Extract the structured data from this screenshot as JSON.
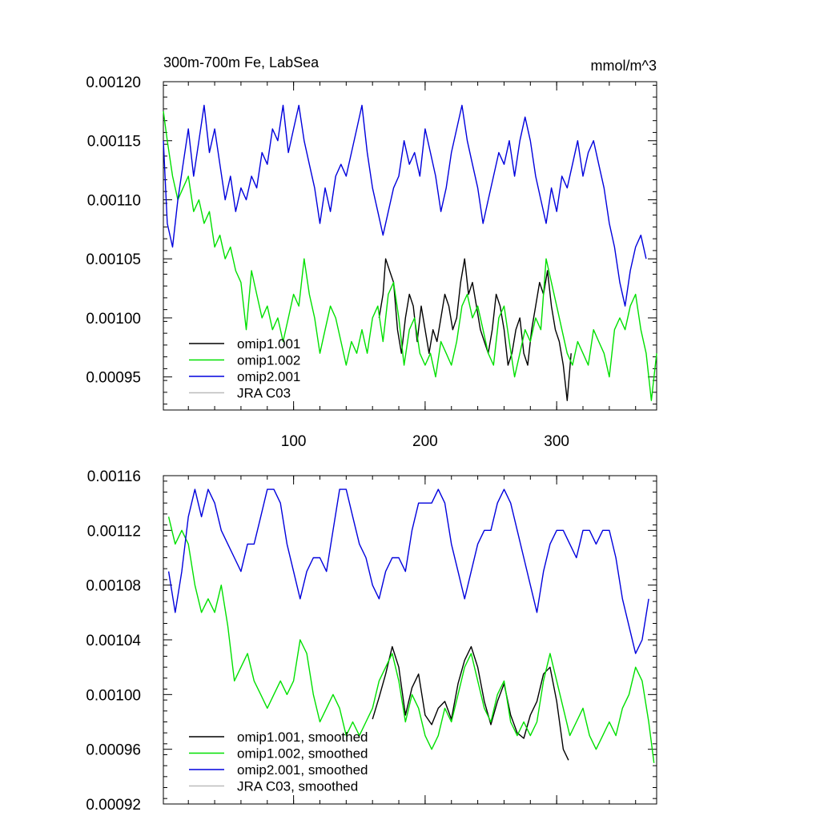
{
  "chart_data": [
    {
      "type": "line",
      "title": "300m-700m Fe, LabSea",
      "units": "mmol/m^3",
      "xlim": [
        1,
        376
      ],
      "ylim": [
        0.000922,
        0.0012
      ],
      "xticks": [
        100,
        200,
        300
      ],
      "xtick_labels": [
        "100",
        "200",
        "300"
      ],
      "yticks": [
        0.00095,
        0.001,
        0.00105,
        0.0011,
        0.00115,
        0.0012
      ],
      "ytick_labels": [
        "0.00095",
        "0.00100",
        "0.00105",
        "0.00110",
        "0.00115",
        "0.00120"
      ],
      "legend_position": "bottom-left",
      "series": [
        {
          "name": "omip1.001",
          "color": "#000000",
          "x": [
            165,
            168,
            170,
            173,
            176,
            179,
            182,
            185,
            188,
            191,
            194,
            197,
            200,
            203,
            206,
            209,
            212,
            215,
            218,
            221,
            224,
            227,
            230,
            233,
            236,
            239,
            242,
            245,
            248,
            251,
            254,
            257,
            260,
            263,
            266,
            269,
            272,
            275,
            278,
            281,
            284,
            287,
            290,
            293,
            296,
            299,
            302,
            305,
            308,
            311
          ],
          "y": [
            0.001,
            0.00102,
            0.00105,
            0.00104,
            0.00103,
            0.00099,
            0.00097,
            0.001,
            0.00102,
            0.00101,
            0.00098,
            0.00101,
            0.00099,
            0.00097,
            0.00099,
            0.00098,
            0.001,
            0.00102,
            0.00101,
            0.00099,
            0.001,
            0.00103,
            0.00105,
            0.00102,
            0.00103,
            0.00101,
            0.00099,
            0.00098,
            0.00097,
            0.00099,
            0.00102,
            0.00101,
            0.00099,
            0.00096,
            0.00097,
            0.00099,
            0.001,
            0.00097,
            0.00096,
            0.00099,
            0.00101,
            0.00103,
            0.00102,
            0.00104,
            0.00101,
            0.00099,
            0.00098,
            0.00096,
            0.00093,
            0.00097
          ]
        },
        {
          "name": "omip1.002",
          "color": "#00e000",
          "x": [
            1,
            4,
            8,
            12,
            16,
            20,
            24,
            28,
            32,
            36,
            40,
            44,
            48,
            52,
            56,
            60,
            64,
            68,
            72,
            76,
            80,
            84,
            88,
            92,
            96,
            100,
            104,
            108,
            112,
            116,
            120,
            124,
            128,
            132,
            136,
            140,
            144,
            148,
            152,
            156,
            160,
            164,
            168,
            172,
            176,
            180,
            184,
            188,
            192,
            196,
            200,
            204,
            208,
            212,
            216,
            220,
            224,
            228,
            232,
            236,
            240,
            244,
            248,
            252,
            256,
            260,
            264,
            268,
            272,
            276,
            280,
            284,
            288,
            292,
            296,
            300,
            304,
            308,
            312,
            316,
            320,
            324,
            328,
            332,
            336,
            340,
            344,
            348,
            352,
            356,
            360,
            364,
            368,
            372,
            376
          ],
          "y": [
            0.001175,
            0.00115,
            0.00112,
            0.0011,
            0.00111,
            0.00112,
            0.00109,
            0.0011,
            0.00108,
            0.00109,
            0.00106,
            0.00107,
            0.00105,
            0.00106,
            0.00104,
            0.00103,
            0.00099,
            0.00104,
            0.00102,
            0.001,
            0.00101,
            0.00099,
            0.001,
            0.00098,
            0.001,
            0.00102,
            0.00101,
            0.00105,
            0.00102,
            0.001,
            0.00097,
            0.00099,
            0.00101,
            0.001,
            0.00098,
            0.00096,
            0.00098,
            0.00097,
            0.00099,
            0.00097,
            0.001,
            0.00101,
            0.00098,
            0.00102,
            0.00103,
            0.001,
            0.00096,
            0.00099,
            0.001,
            0.00097,
            0.00096,
            0.00097,
            0.00095,
            0.00098,
            0.00097,
            0.00096,
            0.00098,
            0.00101,
            0.00102,
            0.001,
            0.00101,
            0.00099,
            0.00097,
            0.00096,
            0.001,
            0.00101,
            0.00098,
            0.00095,
            0.00097,
            0.00099,
            0.00098,
            0.001,
            0.00099,
            0.00105,
            0.00103,
            0.00101,
            0.00099,
            0.00097,
            0.00096,
            0.00098,
            0.00097,
            0.00096,
            0.00099,
            0.00098,
            0.00097,
            0.00095,
            0.00099,
            0.001,
            0.00099,
            0.00101,
            0.00102,
            0.00099,
            0.00097,
            0.00093,
            0.00097
          ]
        },
        {
          "name": "omip2.001",
          "color": "#0000dd",
          "x": [
            1,
            4,
            8,
            12,
            16,
            20,
            24,
            28,
            32,
            36,
            40,
            44,
            48,
            52,
            56,
            60,
            64,
            68,
            72,
            76,
            80,
            84,
            88,
            92,
            96,
            100,
            104,
            108,
            112,
            116,
            120,
            124,
            128,
            132,
            136,
            140,
            144,
            148,
            152,
            156,
            160,
            164,
            168,
            172,
            176,
            180,
            184,
            188,
            192,
            196,
            200,
            204,
            208,
            212,
            216,
            220,
            224,
            228,
            232,
            236,
            240,
            244,
            248,
            252,
            256,
            260,
            264,
            268,
            272,
            276,
            280,
            284,
            288,
            292,
            296,
            300,
            304,
            308,
            312,
            316,
            320,
            324,
            328,
            332,
            336,
            340,
            344,
            348,
            352,
            356,
            360,
            364,
            368
          ],
          "y": [
            0.00115,
            0.00108,
            0.00106,
            0.0011,
            0.00113,
            0.00116,
            0.00112,
            0.00115,
            0.00118,
            0.00114,
            0.00116,
            0.00113,
            0.0011,
            0.00112,
            0.00109,
            0.00111,
            0.0011,
            0.00112,
            0.00111,
            0.00114,
            0.00113,
            0.00116,
            0.00115,
            0.00118,
            0.00114,
            0.00116,
            0.00118,
            0.00115,
            0.00113,
            0.00111,
            0.00108,
            0.00111,
            0.00109,
            0.00112,
            0.00113,
            0.00112,
            0.00114,
            0.00116,
            0.00118,
            0.00114,
            0.00111,
            0.00109,
            0.00107,
            0.00109,
            0.00111,
            0.00112,
            0.00115,
            0.00113,
            0.00114,
            0.00112,
            0.00116,
            0.00114,
            0.00112,
            0.00109,
            0.00111,
            0.00114,
            0.00116,
            0.00118,
            0.00115,
            0.00113,
            0.00111,
            0.00108,
            0.0011,
            0.00112,
            0.00114,
            0.00113,
            0.00115,
            0.00112,
            0.00115,
            0.00117,
            0.00115,
            0.00112,
            0.0011,
            0.00108,
            0.00111,
            0.00109,
            0.00112,
            0.00111,
            0.00113,
            0.00115,
            0.00112,
            0.00114,
            0.00115,
            0.00113,
            0.00111,
            0.00108,
            0.00106,
            0.00103,
            0.00101,
            0.00104,
            0.00106,
            0.00107,
            0.00105
          ]
        },
        {
          "name": "JRA C03",
          "color": "#bbbbbb",
          "x": [],
          "y": []
        }
      ]
    },
    {
      "type": "line",
      "title": "",
      "units": "",
      "xlim": [
        1,
        376
      ],
      "ylim": [
        0.00092,
        0.00116
      ],
      "xticks": [
        100,
        200,
        300
      ],
      "xtick_labels": [
        "",
        "",
        ""
      ],
      "yticks": [
        0.00092,
        0.00096,
        0.001,
        0.00104,
        0.00108,
        0.00112,
        0.00116
      ],
      "ytick_labels": [
        "0.00092",
        "0.00096",
        "0.00100",
        "0.00104",
        "0.00108",
        "0.00112",
        "0.00116"
      ],
      "legend_position": "bottom-left",
      "series": [
        {
          "name": "omip1.001, smoothed",
          "color": "#000000",
          "x": [
            160,
            165,
            170,
            175,
            180,
            185,
            190,
            195,
            200,
            205,
            210,
            215,
            220,
            225,
            230,
            235,
            240,
            245,
            250,
            255,
            260,
            265,
            270,
            275,
            280,
            285,
            290,
            295,
            300,
            305,
            309
          ],
          "y": [
            0.000982,
            0.000998,
            0.001015,
            0.001035,
            0.00102,
            0.000985,
            0.001005,
            0.001015,
            0.000985,
            0.000978,
            0.00099,
            0.000995,
            0.000982,
            0.001008,
            0.001025,
            0.001035,
            0.00102,
            0.000995,
            0.000978,
            0.000995,
            0.001008,
            0.000985,
            0.000972,
            0.000968,
            0.000985,
            0.000995,
            0.001015,
            0.00102,
            0.000995,
            0.00096,
            0.000952
          ]
        },
        {
          "name": "omip1.002, smoothed",
          "color": "#00e000",
          "x": [
            5,
            10,
            15,
            20,
            25,
            30,
            35,
            40,
            45,
            50,
            55,
            60,
            65,
            70,
            75,
            80,
            85,
            90,
            95,
            100,
            105,
            110,
            115,
            120,
            125,
            130,
            135,
            140,
            145,
            150,
            155,
            160,
            165,
            170,
            175,
            180,
            185,
            190,
            195,
            200,
            205,
            210,
            215,
            220,
            225,
            230,
            235,
            240,
            245,
            250,
            255,
            260,
            265,
            270,
            275,
            280,
            285,
            290,
            295,
            300,
            305,
            310,
            315,
            320,
            325,
            330,
            335,
            340,
            345,
            350,
            355,
            360,
            365,
            370,
            374
          ],
          "y": [
            0.00113,
            0.00111,
            0.00112,
            0.00111,
            0.00108,
            0.00106,
            0.00107,
            0.00106,
            0.00108,
            0.00105,
            0.00101,
            0.00102,
            0.00103,
            0.00101,
            0.001,
            0.00099,
            0.001,
            0.00101,
            0.001,
            0.00101,
            0.00104,
            0.00103,
            0.001,
            0.00098,
            0.00099,
            0.001,
            0.00099,
            0.00097,
            0.00098,
            0.00097,
            0.00098,
            0.00099,
            0.00101,
            0.00102,
            0.00103,
            0.00101,
            0.00098,
            0.001,
            0.00099,
            0.00097,
            0.00096,
            0.00097,
            0.00099,
            0.00098,
            0.001,
            0.00102,
            0.00103,
            0.00101,
            0.00099,
            0.00098,
            0.001,
            0.00101,
            0.00098,
            0.00097,
            0.00098,
            0.00097,
            0.00098,
            0.00101,
            0.00103,
            0.00101,
            0.00099,
            0.00097,
            0.00098,
            0.00099,
            0.00097,
            0.00096,
            0.00097,
            0.00098,
            0.00097,
            0.00099,
            0.001,
            0.00102,
            0.00101,
            0.00098,
            0.00095
          ]
        },
        {
          "name": "omip2.001, smoothed",
          "color": "#0000dd",
          "x": [
            5,
            10,
            15,
            20,
            25,
            30,
            35,
            40,
            45,
            50,
            55,
            60,
            65,
            70,
            75,
            80,
            85,
            90,
            95,
            100,
            105,
            110,
            115,
            120,
            125,
            130,
            135,
            140,
            145,
            150,
            155,
            160,
            165,
            170,
            175,
            180,
            185,
            190,
            195,
            200,
            205,
            210,
            215,
            220,
            225,
            230,
            235,
            240,
            245,
            250,
            255,
            260,
            265,
            270,
            275,
            280,
            285,
            290,
            295,
            300,
            305,
            310,
            315,
            320,
            325,
            330,
            335,
            340,
            345,
            350,
            355,
            360,
            365,
            370
          ],
          "y": [
            0.00109,
            0.00106,
            0.00109,
            0.00113,
            0.00115,
            0.00113,
            0.00115,
            0.00114,
            0.00112,
            0.00111,
            0.0011,
            0.00109,
            0.00111,
            0.00111,
            0.00113,
            0.00115,
            0.00115,
            0.00114,
            0.00111,
            0.00109,
            0.00107,
            0.00109,
            0.0011,
            0.0011,
            0.00109,
            0.00112,
            0.00115,
            0.00115,
            0.00113,
            0.00111,
            0.0011,
            0.00108,
            0.00107,
            0.00109,
            0.0011,
            0.0011,
            0.00109,
            0.00112,
            0.00114,
            0.00114,
            0.00114,
            0.00115,
            0.00114,
            0.00111,
            0.00109,
            0.00107,
            0.00109,
            0.00111,
            0.00112,
            0.00112,
            0.00114,
            0.00115,
            0.00114,
            0.00112,
            0.0011,
            0.00108,
            0.00106,
            0.00109,
            0.00111,
            0.00112,
            0.00112,
            0.00111,
            0.0011,
            0.00112,
            0.00112,
            0.00111,
            0.00112,
            0.00112,
            0.0011,
            0.00107,
            0.00105,
            0.00103,
            0.00104,
            0.00107
          ]
        },
        {
          "name": "JRA C03, smoothed",
          "color": "#bbbbbb",
          "x": [],
          "y": []
        }
      ]
    }
  ]
}
